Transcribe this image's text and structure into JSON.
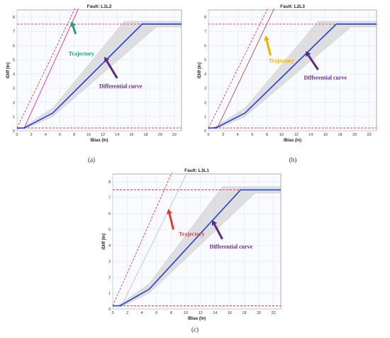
{
  "figure": {
    "sublabels": [
      "(a)",
      "(b)",
      "(c)"
    ]
  },
  "colors": {
    "differential_curve": "#1f3fd0",
    "threshold_dashed": "#e53935",
    "tolerance_band": "#c9c9c9",
    "arrow_differential": "#5b2a86",
    "arrow_a": "#1aa37a",
    "arrow_b": "#f0b000",
    "arrow_c": "#e53935",
    "trajectory_a": "#e040c0",
    "trajectory_b": "#b06060",
    "trajectory_c": "#c8c8c8"
  },
  "chart_data": [
    {
      "type": "line",
      "title": "Fault: L1L2",
      "xlabel": "IBias (In)",
      "ylabel": "IDiff (In)",
      "xlim": [
        0,
        23
      ],
      "ylim": [
        0,
        8.5
      ],
      "xticks": [
        "0",
        "2",
        "4",
        "6",
        "8",
        "10",
        "12",
        "14",
        "16",
        "18",
        "20",
        "22"
      ],
      "yticks": [
        "0",
        "1",
        "2",
        "3",
        "4",
        "5",
        "6",
        "7",
        "8"
      ],
      "grid": true,
      "series": [
        {
          "role": "differential",
          "x": [
            0,
            1,
            5,
            17.5,
            23
          ],
          "y": [
            0.2,
            0.2,
            1.25,
            7.5,
            7.5
          ]
        },
        {
          "role": "band_upper",
          "x": [
            1,
            5,
            15,
            23
          ],
          "y": [
            0.3,
            1.6,
            7.7,
            7.7
          ]
        },
        {
          "role": "band_lower",
          "x": [
            1,
            5,
            19.5,
            23
          ],
          "y": [
            0.12,
            1.0,
            7.3,
            7.3
          ]
        },
        {
          "role": "trajectory",
          "x": [
            0,
            1,
            8.6
          ],
          "y": [
            0.15,
            0.2,
            8.6
          ]
        },
        {
          "role": "limit_line",
          "x": [
            0,
            8.1
          ],
          "y": [
            0.2,
            8.6
          ]
        },
        {
          "role": "hline_high",
          "x": [
            0,
            23
          ],
          "y": [
            7.5,
            7.5
          ]
        },
        {
          "role": "hline_low",
          "x": [
            0,
            23
          ],
          "y": [
            0.2,
            0.2
          ]
        }
      ],
      "annotations": [
        {
          "label": "Trajectory",
          "x": 9.0,
          "y": 5.3,
          "arrow_from": [
            8.2,
            6.8
          ],
          "arrow_to": [
            7.6,
            7.7
          ],
          "color_key": "arrow_a"
        },
        {
          "label": "Differential curve",
          "x": 14.5,
          "y": 3.0,
          "arrow_from": [
            14.0,
            3.7
          ],
          "arrow_to": [
            12.2,
            5.2
          ],
          "color_key": "arrow_differential"
        }
      ]
    },
    {
      "type": "line",
      "title": "Fault: L2L3",
      "xlabel": "IBias (In)",
      "ylabel": "IDiff (In)",
      "xlim": [
        0,
        23
      ],
      "ylim": [
        0,
        8.5
      ],
      "xticks": [
        "0",
        "2",
        "4",
        "6",
        "8",
        "10",
        "12",
        "14",
        "16",
        "18",
        "20",
        "22"
      ],
      "yticks": [
        "0",
        "1",
        "2",
        "3",
        "4",
        "5",
        "6",
        "7",
        "8"
      ],
      "grid": true,
      "series": [
        {
          "role": "differential",
          "x": [
            0,
            1,
            5,
            17.5,
            23
          ],
          "y": [
            0.2,
            0.2,
            1.25,
            7.5,
            7.5
          ]
        },
        {
          "role": "band_upper",
          "x": [
            1,
            5,
            15,
            23
          ],
          "y": [
            0.3,
            1.6,
            7.7,
            7.7
          ]
        },
        {
          "role": "band_lower",
          "x": [
            1,
            5,
            19.5,
            23
          ],
          "y": [
            0.12,
            1.0,
            7.3,
            7.3
          ]
        },
        {
          "role": "trajectory",
          "x": [
            0,
            1.3,
            9.0
          ],
          "y": [
            0.15,
            0.3,
            8.6
          ]
        },
        {
          "role": "limit_line",
          "x": [
            0,
            8.1
          ],
          "y": [
            0.2,
            8.6
          ]
        },
        {
          "role": "hline_high",
          "x": [
            0,
            23
          ],
          "y": [
            7.5,
            7.5
          ]
        },
        {
          "role": "hline_low",
          "x": [
            0,
            23
          ],
          "y": [
            0.2,
            0.2
          ]
        }
      ],
      "annotations": [
        {
          "label": "Trajectory",
          "x": 10.0,
          "y": 4.8,
          "arrow_from": [
            8.5,
            5.3
          ],
          "arrow_to": [
            7.8,
            6.7
          ],
          "color_key": "arrow_b"
        },
        {
          "label": "Differential curve",
          "x": 16.0,
          "y": 3.6,
          "arrow_from": [
            15.0,
            4.3
          ],
          "arrow_to": [
            13.3,
            5.6
          ],
          "color_key": "arrow_differential"
        }
      ]
    },
    {
      "type": "line",
      "title": "Fault: L3L1",
      "xlabel": "IBias (In)",
      "ylabel": "IDiff (In)",
      "xlim": [
        0,
        23
      ],
      "ylim": [
        0,
        8.5
      ],
      "xticks": [
        "0",
        "2",
        "4",
        "6",
        "8",
        "10",
        "12",
        "14",
        "16",
        "18",
        "20",
        "22"
      ],
      "yticks": [
        "0",
        "1",
        "2",
        "3",
        "4",
        "5",
        "6",
        "7",
        "8"
      ],
      "grid": true,
      "series": [
        {
          "role": "differential",
          "x": [
            0,
            1,
            5,
            17.5,
            23
          ],
          "y": [
            0.2,
            0.2,
            1.25,
            7.5,
            7.5
          ]
        },
        {
          "role": "band_upper",
          "x": [
            1,
            5,
            15,
            23
          ],
          "y": [
            0.3,
            1.6,
            7.7,
            7.7
          ]
        },
        {
          "role": "band_lower",
          "x": [
            1,
            5,
            19.5,
            23
          ],
          "y": [
            0.12,
            1.0,
            7.3,
            7.3
          ]
        },
        {
          "role": "trajectory",
          "x": [
            0,
            1.3,
            10.2
          ],
          "y": [
            0.15,
            0.3,
            8.6
          ]
        },
        {
          "role": "limit_line",
          "x": [
            0,
            8.1
          ],
          "y": [
            0.2,
            8.6
          ]
        },
        {
          "role": "hline_high",
          "x": [
            0,
            23
          ],
          "y": [
            7.5,
            7.5
          ]
        },
        {
          "role": "hline_low",
          "x": [
            0,
            23
          ],
          "y": [
            0.2,
            0.2
          ]
        }
      ],
      "annotations": [
        {
          "label": "Trajectory",
          "x": 10.8,
          "y": 4.6,
          "arrow_from": [
            8.3,
            5.0
          ],
          "arrow_to": [
            7.6,
            6.3
          ],
          "color_key": "arrow_c"
        },
        {
          "label": "Differential curve",
          "x": 16.2,
          "y": 3.8,
          "arrow_from": [
            15.0,
            4.4
          ],
          "arrow_to": [
            13.6,
            5.6
          ],
          "color_key": "arrow_differential"
        }
      ]
    }
  ]
}
